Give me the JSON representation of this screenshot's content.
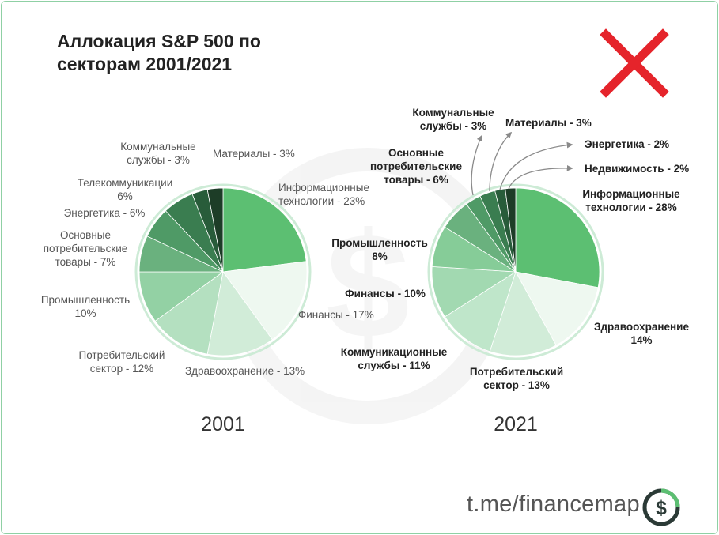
{
  "title": "Аллокация S&P 500 по\nсекторам 2001/2021",
  "footer": "t.me/financemap",
  "logo_symbol": "$",
  "icons": [
    "red-cross-icon",
    "dollar-watermark-icon",
    "dollar-logo-icon"
  ],
  "colors": {
    "accent": "#5cbf72",
    "cross": "#e5242b",
    "text": "#333333"
  },
  "chart_data": [
    {
      "type": "pie",
      "year_label": "2001",
      "slices": [
        {
          "label": "Информационные технологии - 23%",
          "value": 23
        },
        {
          "label": "Финансы - 17%",
          "value": 17
        },
        {
          "label": "Здравоохранение - 13%",
          "value": 13
        },
        {
          "label": "Потребительский сектор - 12%",
          "value": 12
        },
        {
          "label": "Промышленность 10%",
          "value": 10
        },
        {
          "label": "Основные потребительские товары - 7%",
          "value": 7
        },
        {
          "label": "Энергетика - 6%",
          "value": 6
        },
        {
          "label": "Телекоммуникации 6%",
          "value": 6
        },
        {
          "label": "Коммунальные службы - 3%",
          "value": 3
        },
        {
          "label": "Материалы - 3%",
          "value": 3
        }
      ]
    },
    {
      "type": "pie",
      "year_label": "2021",
      "slices": [
        {
          "label": "Информационные технологии - 28%",
          "value": 28
        },
        {
          "label": "Здравоохранение 14%",
          "value": 14
        },
        {
          "label": "Потребительский сектор - 13%",
          "value": 13
        },
        {
          "label": "Коммуникационные службы - 11%",
          "value": 11
        },
        {
          "label": "Финансы - 10%",
          "value": 10
        },
        {
          "label": "Промышленность 8%",
          "value": 8
        },
        {
          "label": "Основные потребительские товары - 6%",
          "value": 6
        },
        {
          "label": "Коммунальные службы - 3%",
          "value": 3
        },
        {
          "label": "Материалы - 3%",
          "value": 3
        },
        {
          "label": "Энергетика - 2%",
          "value": 2
        },
        {
          "label": "Недвижимость - 2%",
          "value": 2
        }
      ]
    }
  ]
}
